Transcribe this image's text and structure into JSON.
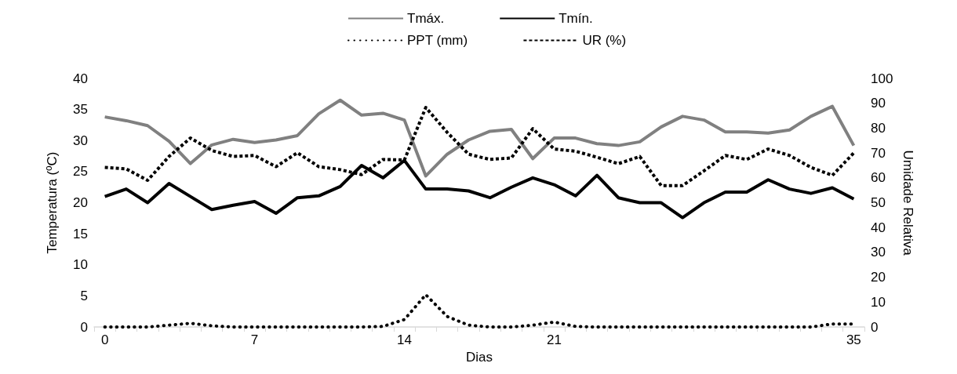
{
  "chart_data": {
    "type": "line",
    "xlabel": "Dias",
    "ylabel": "Temperatura (ºC)",
    "y2label": "Umidade Relativa",
    "categories": [
      "0",
      null,
      null,
      null,
      null,
      null,
      null,
      "7",
      null,
      null,
      null,
      null,
      null,
      null,
      "14",
      null,
      null,
      null,
      null,
      null,
      null,
      "21",
      null,
      null,
      null,
      null,
      null,
      null,
      null,
      null,
      null,
      null,
      null,
      null,
      null,
      "35"
    ],
    "ylim": [
      0,
      40
    ],
    "yticks": [
      0,
      5,
      10,
      15,
      20,
      25,
      30,
      35,
      40
    ],
    "y2lim": [
      0,
      100
    ],
    "y2ticks": [
      0,
      10,
      20,
      30,
      40,
      50,
      60,
      70,
      80,
      90,
      100
    ],
    "grid": false,
    "legend": "top",
    "marker": "none",
    "series": [
      {
        "name": "Tmáx.",
        "color": "#808080",
        "line_style": "solid",
        "values": [
          33.8,
          33.2,
          32.4,
          29.9,
          26.3,
          29.3,
          30.2,
          29.7,
          30.1,
          30.8,
          34.3,
          36.5,
          34.1,
          34.4,
          33.3,
          24.3,
          27.8,
          30.1,
          31.5,
          31.8,
          27.1,
          30.4,
          30.4,
          29.5,
          29.2,
          29.8,
          32.2,
          33.9,
          33.3,
          31.4,
          31.4,
          31.2,
          31.7,
          33.9,
          35.5,
          29.2
        ]
      },
      {
        "name": "Tmín.",
        "color": "#000000",
        "line_style": "solid",
        "values": [
          21.0,
          22.2,
          20.0,
          23.1,
          21.0,
          18.9,
          19.6,
          20.2,
          18.3,
          20.8,
          21.1,
          22.6,
          26.0,
          24.0,
          26.8,
          22.2,
          22.2,
          21.9,
          20.8,
          22.5,
          24.0,
          22.9,
          21.1,
          24.4,
          20.8,
          20.0,
          20.0,
          17.6,
          20.0,
          21.7,
          21.7,
          23.7,
          22.2,
          21.5,
          22.4,
          20.6
        ]
      },
      {
        "name": "PPT (mm)",
        "color": "#000000",
        "line_style": "dotted",
        "values": [
          0,
          0,
          0,
          0.3,
          0.6,
          0.2,
          0,
          0,
          0,
          0,
          0,
          0,
          0,
          0.1,
          1.2,
          5.2,
          1.7,
          0.3,
          0,
          0,
          0.3,
          0.8,
          0.1,
          0,
          0,
          0,
          0,
          0,
          0,
          0,
          0,
          0,
          0,
          0,
          0.5,
          0.5
        ]
      },
      {
        "name": "UR (%)",
        "color": "#000000",
        "line_style": "dashed",
        "axis": "y2",
        "values": [
          64.2,
          63.6,
          59.0,
          68.6,
          76.0,
          71.0,
          68.6,
          69.0,
          64.5,
          70.1,
          64.5,
          63.3,
          61.3,
          67.4,
          67.2,
          88.3,
          78.3,
          69.5,
          67.4,
          68.0,
          79.8,
          71.6,
          70.7,
          68.3,
          65.7,
          68.6,
          56.9,
          56.9,
          62.8,
          69.0,
          67.4,
          71.6,
          69.0,
          64.2,
          61.0,
          70.0
        ]
      }
    ]
  }
}
